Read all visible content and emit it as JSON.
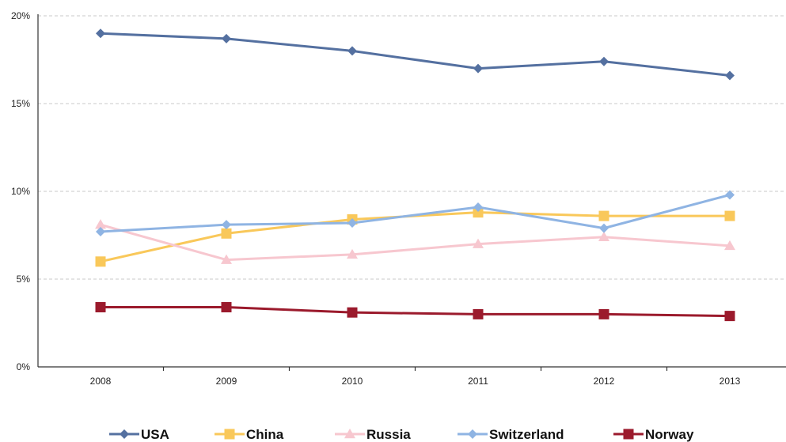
{
  "chart_data": {
    "type": "line",
    "title": "",
    "xlabel": "",
    "ylabel": "",
    "x": [
      "2008",
      "2009",
      "2010",
      "2011",
      "2012",
      "2013"
    ],
    "ylim": [
      0,
      20
    ],
    "yticks": [
      0,
      5,
      10,
      15,
      20
    ],
    "ytick_labels": [
      "0%",
      "5%",
      "10%",
      "15%",
      "20%"
    ],
    "grid": true,
    "legend_position": "bottom",
    "series": [
      {
        "name": "USA",
        "color": "#5470a0",
        "marker": "diamond",
        "values": [
          19.0,
          18.7,
          18.0,
          17.0,
          17.4,
          16.6
        ]
      },
      {
        "name": "China",
        "color": "#f9c85a",
        "marker": "square",
        "values": [
          6.0,
          7.6,
          8.4,
          8.8,
          8.6,
          8.6
        ]
      },
      {
        "name": "Russia",
        "color": "#f7c7cf",
        "marker": "triangle",
        "values": [
          8.1,
          6.1,
          6.4,
          7.0,
          7.4,
          6.9
        ]
      },
      {
        "name": "Switzerland",
        "color": "#8fb4e3",
        "marker": "diamond",
        "values": [
          7.7,
          8.1,
          8.2,
          9.1,
          7.9,
          9.8
        ]
      },
      {
        "name": "Norway",
        "color": "#9b1a2c",
        "marker": "square",
        "values": [
          3.4,
          3.4,
          3.1,
          3.0,
          3.0,
          2.9
        ]
      }
    ]
  }
}
